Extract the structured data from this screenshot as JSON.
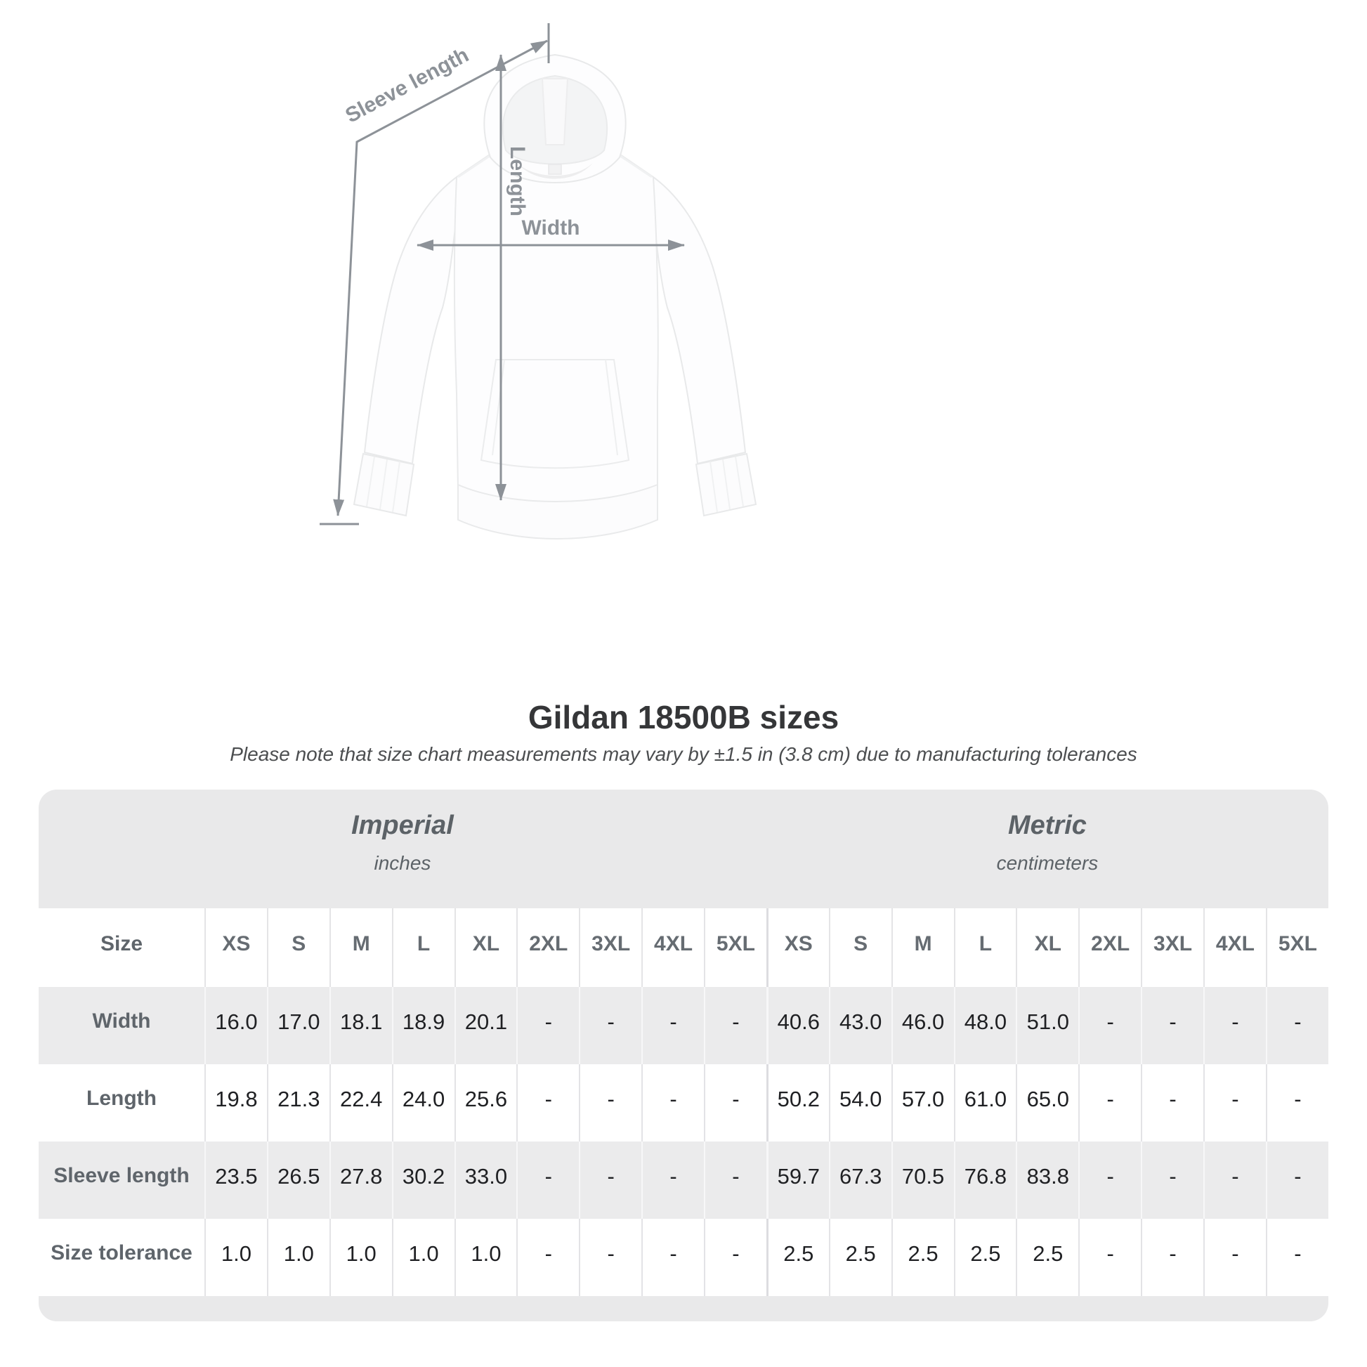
{
  "title": "Gildan 18500B sizes",
  "subtitle": "Please note that size chart measurements may vary by ±1.5 in (3.8 cm) due to manufacturing tolerances",
  "figure": {
    "labels": {
      "sleeve_length": "Sleeve length",
      "length": "Length",
      "width": "Width"
    }
  },
  "colors": {
    "measure_line": "#8d9298",
    "band_background": "#e9e9ea",
    "alt_row_background": "#ebebec",
    "title_text": "#353638",
    "header_text": "#5f656b",
    "value_text": "#1f2023"
  },
  "table": {
    "size_col_header": "Size",
    "groups": [
      {
        "name": "Imperial",
        "unit": "inches"
      },
      {
        "name": "Metric",
        "unit": "centimeters"
      }
    ]
  },
  "chart_data": {
    "type": "table",
    "title": "Gildan 18500B sizes",
    "note": "Please note that size chart measurements may vary by ±1.5 in (3.8 cm) due to manufacturing tolerances",
    "sizes": [
      "XS",
      "S",
      "M",
      "L",
      "XL",
      "2XL",
      "3XL",
      "4XL",
      "5XL"
    ],
    "units": [
      "inches",
      "centimeters"
    ],
    "rows": [
      {
        "label": "Width",
        "imperial": [
          "16.0",
          "17.0",
          "18.1",
          "18.9",
          "20.1",
          "-",
          "-",
          "-",
          "-"
        ],
        "metric": [
          "40.6",
          "43.0",
          "46.0",
          "48.0",
          "51.0",
          "-",
          "-",
          "-",
          "-"
        ]
      },
      {
        "label": "Length",
        "imperial": [
          "19.8",
          "21.3",
          "22.4",
          "24.0",
          "25.6",
          "-",
          "-",
          "-",
          "-"
        ],
        "metric": [
          "50.2",
          "54.0",
          "57.0",
          "61.0",
          "65.0",
          "-",
          "-",
          "-",
          "-"
        ]
      },
      {
        "label": "Sleeve length",
        "imperial": [
          "23.5",
          "26.5",
          "27.8",
          "30.2",
          "33.0",
          "-",
          "-",
          "-",
          "-"
        ],
        "metric": [
          "59.7",
          "67.3",
          "70.5",
          "76.8",
          "83.8",
          "-",
          "-",
          "-",
          "-"
        ]
      },
      {
        "label": "Size tolerance",
        "imperial": [
          "1.0",
          "1.0",
          "1.0",
          "1.0",
          "1.0",
          "-",
          "-",
          "-",
          "-"
        ],
        "metric": [
          "2.5",
          "2.5",
          "2.5",
          "2.5",
          "2.5",
          "-",
          "-",
          "-",
          "-"
        ]
      }
    ]
  }
}
